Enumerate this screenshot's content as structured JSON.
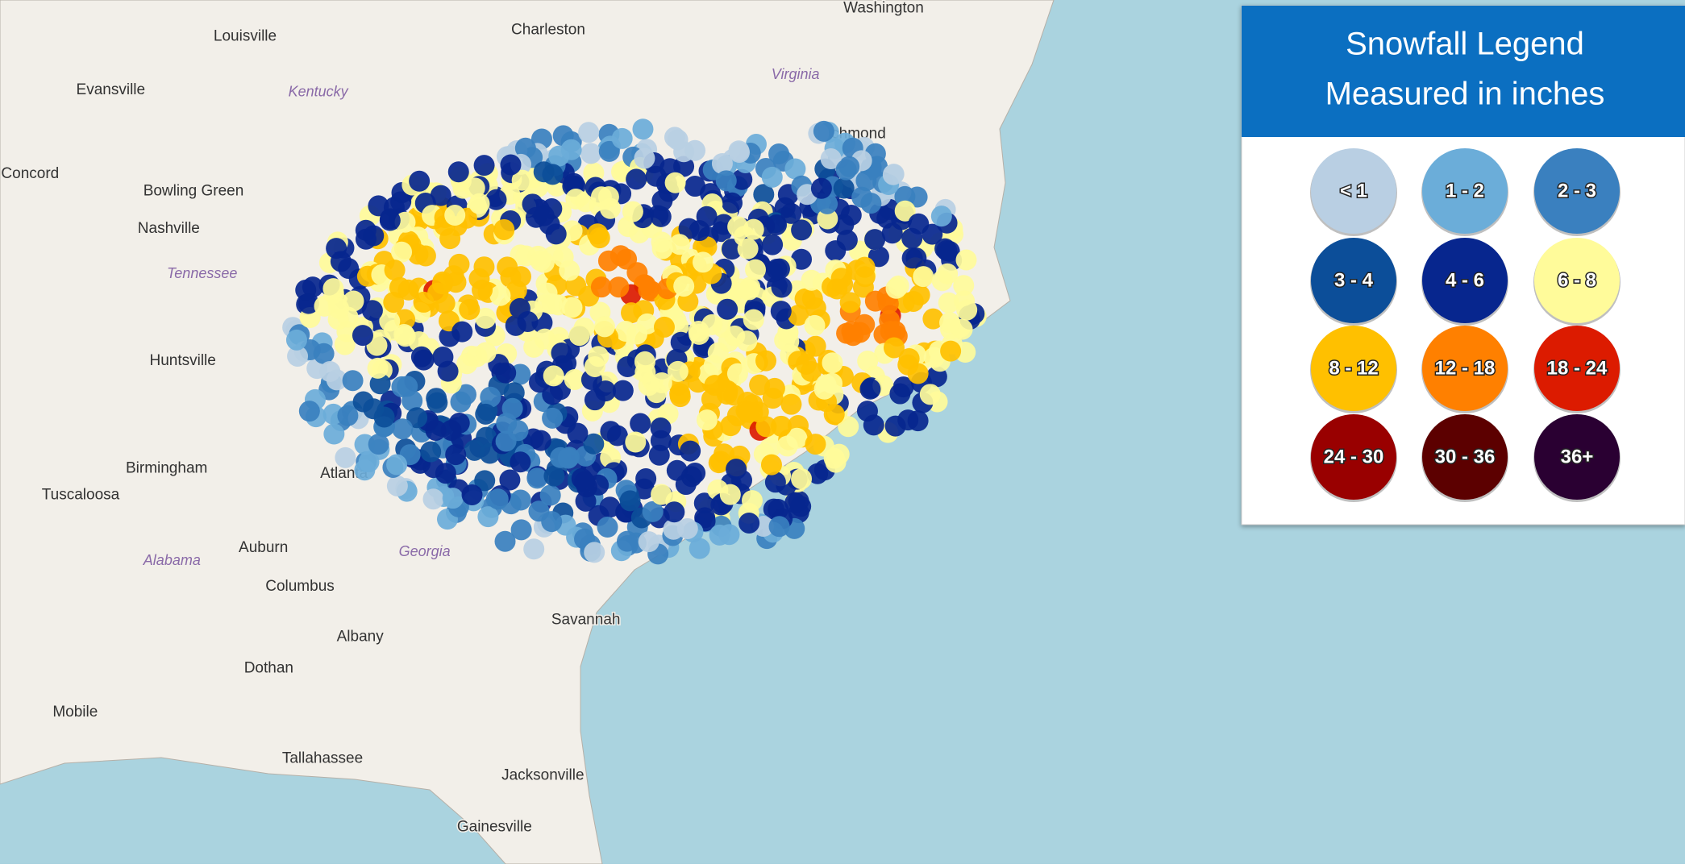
{
  "map": {
    "places": [
      "Washington",
      "Charleston",
      "Louisville",
      "Evansville",
      "Kentucky",
      "Virginia",
      "Richmond",
      "Concord",
      "Bowling Green",
      "Nashville",
      "Tennessee",
      "Huntsville",
      "Birmingham",
      "Tuscaloosa",
      "Atlanta",
      "Auburn",
      "Alabama",
      "Columbus",
      "Georgia",
      "Albany",
      "Dothan",
      "Mobile",
      "Tallahassee",
      "Jacksonville",
      "Gainesville",
      "Savannah"
    ]
  },
  "legend": {
    "title": "Snowfall Legend",
    "subtitle": "Measured in inches",
    "items": [
      {
        "label": "< 1",
        "color": "#b9cfe3"
      },
      {
        "label": "1 - 2",
        "color": "#6badd9"
      },
      {
        "label": "2 - 3",
        "color": "#3a80bf"
      },
      {
        "label": "3 - 4",
        "color": "#0c4e99"
      },
      {
        "label": "4 - 6",
        "color": "#07268e"
      },
      {
        "label": "6 - 8",
        "color": "#fffb9a"
      },
      {
        "label": "8 - 12",
        "color": "#ffc000"
      },
      {
        "label": "12 - 18",
        "color": "#ff8000"
      },
      {
        "label": "18 - 24",
        "color": "#dc1b00"
      },
      {
        "label": "24 - 30",
        "color": "#990000"
      },
      {
        "label": "30 - 36",
        "color": "#5c0000"
      },
      {
        "label": "36+",
        "color": "#2a0032"
      }
    ]
  }
}
